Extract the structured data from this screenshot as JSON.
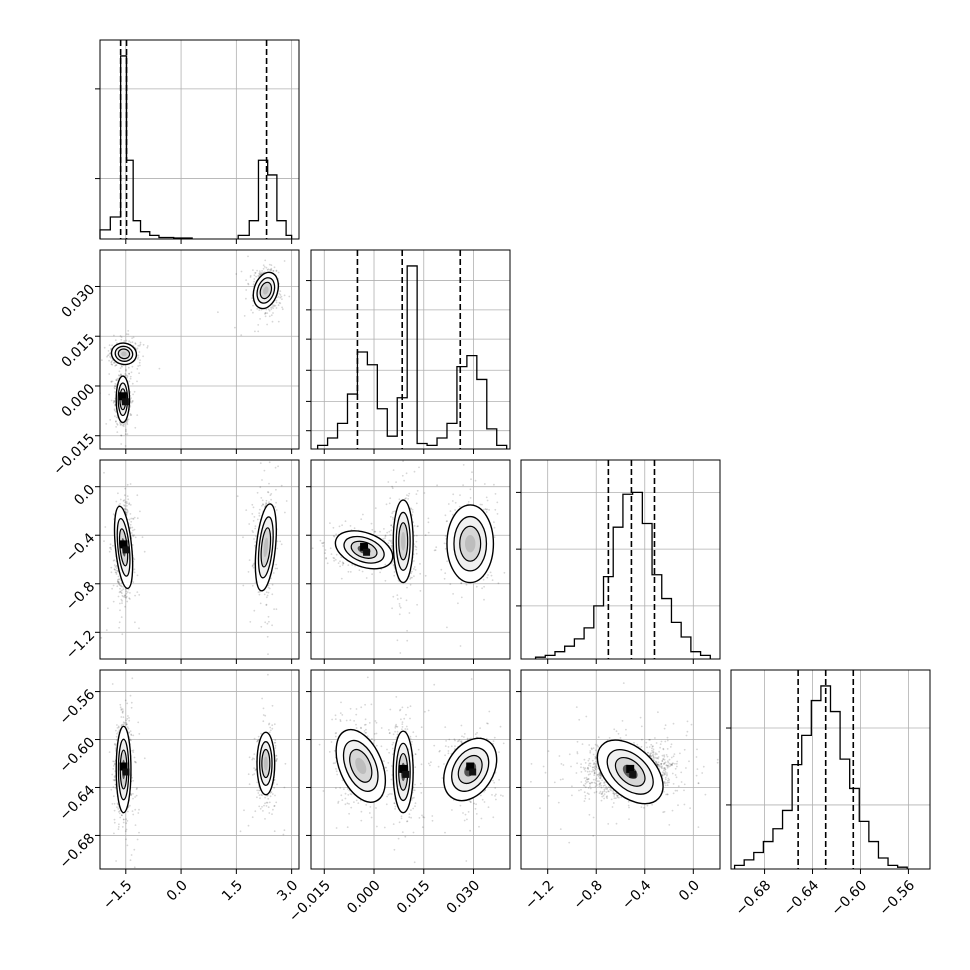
{
  "chart_data": {
    "type": "corner",
    "parameters": [
      {
        "ticks": [
          -1.5,
          0.0,
          1.5,
          3.0
        ],
        "tick_labels": [
          "−1.5",
          "0.0",
          "1.5",
          "3.0"
        ],
        "range": [
          -2.2,
          3.2
        ]
      },
      {
        "ticks": [
          -0.015,
          0.0,
          0.015,
          0.03
        ],
        "tick_labels": [
          "−0.015",
          "0.000",
          "0.015",
          "0.030"
        ],
        "range": [
          -0.019,
          0.041
        ]
      },
      {
        "ticks": [
          -1.2,
          -0.8,
          -0.4,
          0.0
        ],
        "tick_labels": [
          "−1.2",
          "−0.8",
          "−0.4",
          "0.0"
        ],
        "range": [
          -1.42,
          0.22
        ]
      },
      {
        "ticks": [
          -0.68,
          -0.64,
          -0.6,
          -0.56
        ],
        "tick_labels": [
          "−0.68",
          "−0.64",
          "−0.60",
          "−0.56"
        ],
        "range": [
          -0.708,
          -0.542
        ]
      }
    ],
    "histograms": [
      {
        "param": 0,
        "bins": [
          [
            -2.2,
            -1.92,
            0.05
          ],
          [
            -1.92,
            -1.64,
            0.12
          ],
          [
            -1.64,
            -1.48,
            1.0
          ],
          [
            -1.48,
            -1.3,
            0.43
          ],
          [
            -1.3,
            -1.1,
            0.1
          ],
          [
            -1.1,
            -0.85,
            0.04
          ],
          [
            -0.85,
            -0.6,
            0.02
          ],
          [
            -0.6,
            -0.2,
            0.008
          ],
          [
            -0.2,
            0.3,
            0.005
          ],
          [
            1.55,
            1.85,
            0.02
          ],
          [
            1.85,
            2.1,
            0.1
          ],
          [
            2.1,
            2.35,
            0.43
          ],
          [
            2.35,
            2.6,
            0.35
          ],
          [
            2.6,
            2.85,
            0.1
          ],
          [
            2.85,
            3.0,
            0.02
          ]
        ],
        "quantiles": [
          -1.64,
          -1.48,
          2.32
        ],
        "yticks": [
          0.33,
          0.82
        ]
      },
      {
        "param": 1,
        "bins": [
          [
            -0.017,
            -0.014,
            0.02
          ],
          [
            -0.014,
            -0.011,
            0.06
          ],
          [
            -0.011,
            -0.008,
            0.14
          ],
          [
            -0.008,
            -0.005,
            0.3
          ],
          [
            -0.005,
            -0.002,
            0.53
          ],
          [
            -0.002,
            0.001,
            0.46
          ],
          [
            0.001,
            0.004,
            0.22
          ],
          [
            0.004,
            0.007,
            0.07
          ],
          [
            0.007,
            0.01,
            0.28
          ],
          [
            0.01,
            0.013,
            1.0
          ],
          [
            0.013,
            0.016,
            0.03
          ],
          [
            0.016,
            0.019,
            0.02
          ],
          [
            0.019,
            0.022,
            0.06
          ],
          [
            0.022,
            0.025,
            0.14
          ],
          [
            0.025,
            0.028,
            0.45
          ],
          [
            0.028,
            0.031,
            0.51
          ],
          [
            0.031,
            0.034,
            0.38
          ],
          [
            0.034,
            0.037,
            0.11
          ],
          [
            0.037,
            0.04,
            0.02
          ]
        ],
        "quantiles": [
          -0.005,
          0.0085,
          0.026
        ],
        "yticks": [
          0.1,
          0.26,
          0.43,
          0.6,
          0.76,
          0.92
        ]
      },
      {
        "param": 2,
        "bins": [
          [
            -1.3,
            -1.22,
            0.01
          ],
          [
            -1.22,
            -1.14,
            0.02
          ],
          [
            -1.14,
            -1.06,
            0.04
          ],
          [
            -1.06,
            -0.98,
            0.07
          ],
          [
            -0.98,
            -0.9,
            0.11
          ],
          [
            -0.9,
            -0.82,
            0.17
          ],
          [
            -0.82,
            -0.74,
            0.29
          ],
          [
            -0.74,
            -0.66,
            0.45
          ],
          [
            -0.66,
            -0.58,
            0.72
          ],
          [
            -0.58,
            -0.5,
            0.9
          ],
          [
            -0.5,
            -0.42,
            0.91
          ],
          [
            -0.42,
            -0.34,
            0.74
          ],
          [
            -0.34,
            -0.26,
            0.46
          ],
          [
            -0.26,
            -0.18,
            0.33
          ],
          [
            -0.18,
            -0.1,
            0.2
          ],
          [
            -0.1,
            -0.02,
            0.12
          ],
          [
            -0.02,
            0.06,
            0.04
          ],
          [
            0.06,
            0.14,
            0.02
          ]
        ],
        "quantiles": [
          -0.7,
          -0.51,
          -0.32
        ],
        "yticks": [
          0.29,
          0.6,
          0.91
        ]
      },
      {
        "param": 3,
        "bins": [
          [
            -0.705,
            -0.697,
            0.02
          ],
          [
            -0.697,
            -0.689,
            0.05
          ],
          [
            -0.689,
            -0.681,
            0.09
          ],
          [
            -0.681,
            -0.673,
            0.15
          ],
          [
            -0.673,
            -0.665,
            0.22
          ],
          [
            -0.665,
            -0.657,
            0.32
          ],
          [
            -0.657,
            -0.649,
            0.57
          ],
          [
            -0.649,
            -0.641,
            0.73
          ],
          [
            -0.641,
            -0.633,
            0.92
          ],
          [
            -0.633,
            -0.625,
            1.0
          ],
          [
            -0.625,
            -0.617,
            0.86
          ],
          [
            -0.617,
            -0.609,
            0.6
          ],
          [
            -0.609,
            -0.601,
            0.44
          ],
          [
            -0.601,
            -0.593,
            0.26
          ],
          [
            -0.593,
            -0.585,
            0.15
          ],
          [
            -0.585,
            -0.577,
            0.06
          ],
          [
            -0.577,
            -0.569,
            0.02
          ],
          [
            -0.569,
            -0.561,
            0.01
          ]
        ],
        "quantiles": [
          -0.652,
          -0.629,
          -0.606
        ],
        "yticks": [
          0.35,
          0.77
        ]
      }
    ],
    "scatter_panels": [
      {
        "row": 1,
        "col": 0,
        "modes": [
          {
            "cx": -1.55,
            "cy": 0.0097,
            "sx": 0.17,
            "sy": 0.0016,
            "rot": -0.2,
            "n": 520,
            "peak": 0.5
          },
          {
            "cx": -1.58,
            "cy": -0.004,
            "sx": 0.09,
            "sy": 0.0035,
            "rot": 0,
            "n": 720,
            "peak": 0.9
          },
          {
            "cx": 2.3,
            "cy": 0.0288,
            "sx": 0.16,
            "sy": 0.0028,
            "rot": -0.3,
            "n": 560,
            "peak": 0.45
          }
        ]
      },
      {
        "row": 2,
        "col": 0,
        "modes": [
          {
            "cx": -1.56,
            "cy": -0.5,
            "sx": 0.11,
            "sy": 0.17,
            "rot": 0.1,
            "n": 820,
            "peak": 0.9
          },
          {
            "cx": 2.3,
            "cy": -0.5,
            "sx": 0.13,
            "sy": 0.18,
            "rot": -0.1,
            "n": 560,
            "peak": 0.35
          }
        ]
      },
      {
        "row": 3,
        "col": 0,
        "modes": [
          {
            "cx": -1.56,
            "cy": -0.625,
            "sx": 0.1,
            "sy": 0.018,
            "rot": 0,
            "n": 820,
            "peak": 0.95
          },
          {
            "cx": 2.3,
            "cy": -0.62,
            "sx": 0.12,
            "sy": 0.013,
            "rot": 0,
            "n": 560,
            "peak": 0.4
          }
        ]
      },
      {
        "row": 2,
        "col": 1,
        "modes": [
          {
            "cx": -0.003,
            "cy": -0.52,
            "sx": 0.0045,
            "sy": 0.07,
            "rot": -0.35,
            "n": 520,
            "peak": 0.95
          },
          {
            "cx": 0.0088,
            "cy": -0.45,
            "sx": 0.0015,
            "sy": 0.17,
            "rot": 0,
            "n": 520,
            "peak": 0.55
          },
          {
            "cx": 0.029,
            "cy": -0.47,
            "sx": 0.0035,
            "sy": 0.16,
            "rot": 0,
            "n": 520,
            "peak": 0.35
          }
        ]
      },
      {
        "row": 3,
        "col": 1,
        "modes": [
          {
            "cx": -0.004,
            "cy": -0.622,
            "sx": 0.0032,
            "sy": 0.016,
            "rot": 0.4,
            "n": 520,
            "peak": 0.6
          },
          {
            "cx": 0.0088,
            "cy": -0.627,
            "sx": 0.0015,
            "sy": 0.017,
            "rot": 0,
            "n": 520,
            "peak": 0.9
          },
          {
            "cx": 0.029,
            "cy": -0.625,
            "sx": 0.0035,
            "sy": 0.014,
            "rot": -0.55,
            "n": 520,
            "peak": 0.9
          }
        ]
      },
      {
        "row": 3,
        "col": 2,
        "modes": [
          {
            "cx": -0.52,
            "cy": -0.627,
            "sx": 0.16,
            "sy": 0.01,
            "rot": -0.75,
            "n": 1800,
            "peak": 1.0
          }
        ]
      }
    ],
    "grid": true
  }
}
